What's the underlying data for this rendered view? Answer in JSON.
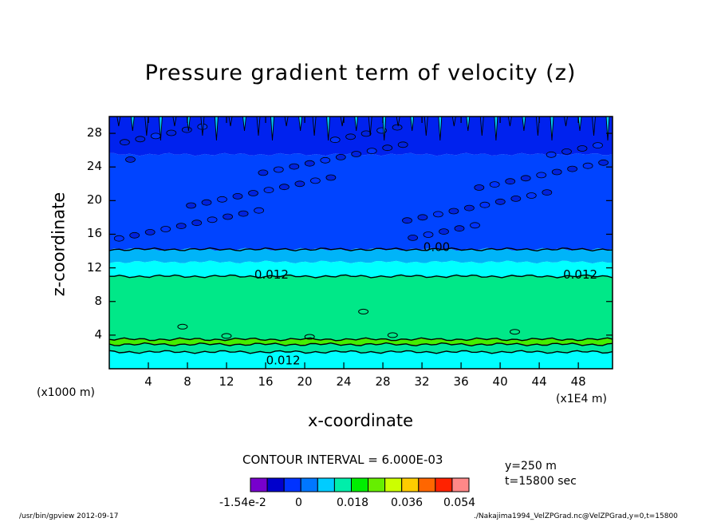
{
  "chart_data": {
    "type": "contour",
    "title": "Pressure gradient term of velocity (z)",
    "xlabel": "x-coordinate",
    "ylabel": "z-coordinate",
    "x_unit_left": "(x1000 m)",
    "x_unit_right": "(x1E4 m)",
    "xlim": [
      0,
      51.5
    ],
    "ylim": [
      0,
      30
    ],
    "x_ticks": [
      4,
      8,
      12,
      16,
      20,
      24,
      28,
      32,
      36,
      40,
      44,
      48
    ],
    "y_ticks": [
      4,
      8,
      12,
      16,
      20,
      24,
      28
    ],
    "contour_labels": [
      {
        "text": "0.00",
        "x": 33.5,
        "z": 14.5
      },
      {
        "text": "0.012",
        "x": 16.6,
        "z": 11.2
      },
      {
        "text": "0.012",
        "x": 48.2,
        "z": 11.2
      },
      {
        "text": "0.012",
        "x": 17.8,
        "z": 1.0
      }
    ],
    "bands": [
      {
        "z_from": 0.0,
        "z_to": 2.0,
        "level_color": "#00ffff"
      },
      {
        "z_from": 2.0,
        "z_to": 2.9,
        "level_color": "#00e8a0"
      },
      {
        "z_from": 2.9,
        "z_to": 3.5,
        "level_color": "#44ee00"
      },
      {
        "z_from": 3.5,
        "z_to": 11.0,
        "level_color": "#00e888"
      },
      {
        "z_from": 11.0,
        "z_to": 12.7,
        "level_color": "#00ffff"
      },
      {
        "z_from": 12.7,
        "z_to": 14.2,
        "level_color": "#00b4f8"
      },
      {
        "z_from": 14.2,
        "z_to": 25.5,
        "level_color": "#0044ff"
      },
      {
        "z_from": 25.5,
        "z_to": 30.0,
        "level_color": "#0022ee"
      }
    ],
    "contour_interval": "CONTOUR INTERVAL = 6.000E-03",
    "colorbar": {
      "colors": [
        "#7700cc",
        "#0000cc",
        "#0033ff",
        "#0077ff",
        "#00ccff",
        "#00eeaa",
        "#00ee00",
        "#66ee00",
        "#ccff00",
        "#ffcc00",
        "#ff6600",
        "#ff2200",
        "#ff8888"
      ],
      "labels": [
        "-1.54e-2",
        "0",
        "0.018",
        "0.036",
        "0.054"
      ]
    },
    "grid": false,
    "legend": "none"
  },
  "info": {
    "y": "y=250 m",
    "t": "t=15800 sec"
  },
  "footer": {
    "left": "/usr/bin/gpview   2012-09-17",
    "right": "./Nakajima1994_VelZPGrad.nc@VelZPGrad,y=0,t=15800"
  }
}
